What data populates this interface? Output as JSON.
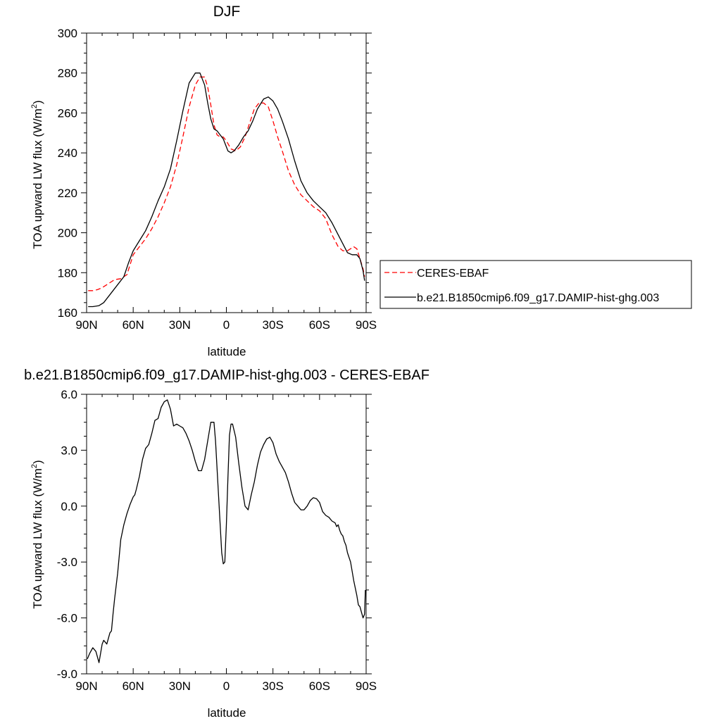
{
  "chart_data": [
    {
      "type": "line",
      "title": "DJF",
      "xlabel": "latitude",
      "ylabel": "TOA upward LW flux (W/m",
      "ylabel_sup": "2",
      "ylabel_close": ")",
      "xlim": [
        90,
        -90
      ],
      "ylim": [
        160,
        300
      ],
      "x_ticks": [
        90,
        60,
        30,
        0,
        -30,
        -60,
        -90
      ],
      "x_tick_labels": [
        "90N",
        "60N",
        "30N",
        "0",
        "30S",
        "60S",
        "90S"
      ],
      "y_ticks": [
        160,
        180,
        200,
        220,
        240,
        260,
        280,
        300
      ],
      "y_tick_labels": [
        "160",
        "180",
        "200",
        "220",
        "240",
        "260",
        "280",
        "300"
      ],
      "legend": "right",
      "series": [
        {
          "name": "CERES-EBAF",
          "color": "#ff0000",
          "dash": "dashed",
          "x": [
            89,
            86,
            83,
            80,
            76,
            72,
            68,
            64,
            60,
            56,
            52,
            48,
            44,
            40,
            36,
            32,
            28,
            24,
            20,
            17,
            14,
            12,
            10,
            8,
            6,
            4,
            2,
            0,
            -3,
            -6,
            -9,
            -12,
            -15,
            -18,
            -21,
            -24,
            -27,
            -30,
            -33,
            -36,
            -40,
            -44,
            -48,
            -52,
            -56,
            -60,
            -64,
            -68,
            -72,
            -75,
            -78,
            -80,
            -82,
            -84,
            -86,
            -88,
            -89
          ],
          "y": [
            171,
            171,
            171.5,
            172.5,
            174.5,
            176.5,
            177,
            179,
            189,
            193,
            197,
            202,
            208,
            215,
            223,
            234,
            248,
            263,
            274,
            278,
            278,
            273,
            264,
            254,
            249,
            248,
            248,
            246,
            242,
            241,
            243,
            248,
            255,
            262,
            265,
            265,
            263,
            256,
            248,
            241,
            231,
            224,
            219,
            216,
            213,
            211,
            207,
            199,
            193,
            191,
            191,
            192,
            193,
            192,
            187,
            182,
            178
          ]
        },
        {
          "name": "b.e21.B1850cmip6.f09_g17.DAMIP-hist-ghg.003",
          "color": "#000000",
          "dash": "solid",
          "x": [
            89,
            86,
            82,
            79,
            76,
            73,
            70,
            66,
            63,
            60,
            56,
            52,
            48,
            44,
            40,
            36,
            32,
            28,
            24,
            20,
            17,
            14,
            12,
            10,
            8,
            6,
            4,
            2,
            0,
            -1,
            -3,
            -5,
            -8,
            -11,
            -14,
            -17,
            -20,
            -24,
            -27,
            -30,
            -33,
            -36,
            -40,
            -44,
            -48,
            -52,
            -56,
            -60,
            -64,
            -68,
            -72,
            -76,
            -78,
            -81,
            -84,
            -86,
            -88,
            -89
          ],
          "y": [
            163,
            163,
            163.5,
            165,
            168,
            171,
            174,
            178,
            185,
            191,
            196,
            201,
            208,
            216,
            223,
            232,
            246,
            261,
            275,
            280,
            280,
            274,
            265,
            257,
            252,
            251,
            249,
            247,
            243,
            241,
            240,
            241,
            244,
            248,
            251,
            256,
            262,
            267,
            268,
            266,
            262,
            256,
            247,
            236,
            226,
            220,
            216,
            213,
            210,
            205,
            199,
            193,
            190,
            189,
            189,
            187,
            181,
            176
          ]
        }
      ]
    },
    {
      "type": "line",
      "title": "b.e21.B1850cmip6.f09_g17.DAMIP-hist-ghg.003 - CERES-EBAF",
      "xlabel": "latitude",
      "ylabel": "TOA upward LW flux (W/m",
      "ylabel_sup": "2",
      "ylabel_close": ")",
      "xlim": [
        90,
        -90
      ],
      "ylim": [
        -9,
        6
      ],
      "x_ticks": [
        90,
        60,
        30,
        0,
        -30,
        -60,
        -90
      ],
      "x_tick_labels": [
        "90N",
        "60N",
        "30N",
        "0",
        "30S",
        "60S",
        "90S"
      ],
      "y_ticks": [
        -9,
        -6,
        -3,
        0,
        3,
        6
      ],
      "y_tick_labels": [
        "-9.0",
        "-6.0",
        "-3.0",
        "0.0",
        "3.0",
        "6.0"
      ],
      "series": [
        {
          "color": "#000000",
          "dash": "solid",
          "x": [
            89.5,
            88,
            86,
            84,
            82,
            80,
            79,
            77,
            75,
            74,
            73,
            72,
            71,
            70,
            69,
            68,
            66,
            64,
            62,
            60,
            59,
            58,
            56,
            54,
            52,
            50,
            48,
            46,
            44,
            42,
            40,
            38,
            36,
            34,
            32,
            30,
            28,
            26,
            25,
            24,
            22,
            20,
            18,
            16,
            14,
            12,
            10,
            8,
            7,
            6,
            5,
            4,
            3,
            2,
            1,
            0,
            -1,
            -2,
            -3,
            -4,
            -6,
            -8,
            -10,
            -12,
            -14,
            -16,
            -18,
            -20,
            -22,
            -24,
            -26,
            -28,
            -30,
            -32,
            -34,
            -36,
            -38,
            -40,
            -42,
            -44,
            -46,
            -48,
            -50,
            -52,
            -54,
            -56,
            -58,
            -60,
            -62,
            -64,
            -66,
            -68,
            -70,
            -71,
            -72,
            -73,
            -74,
            -75,
            -76,
            -77,
            -78,
            -80,
            -82,
            -84,
            -85,
            -86,
            -87,
            -88,
            -89,
            -89.5
          ],
          "y": [
            -8.2,
            -7.9,
            -7.6,
            -7.8,
            -8.4,
            -7.4,
            -7.2,
            -7.4,
            -6.8,
            -6.7,
            -5.8,
            -5.0,
            -4.3,
            -3.6,
            -2.7,
            -1.8,
            -1.0,
            -0.4,
            0.1,
            0.5,
            0.6,
            0.9,
            1.6,
            2.5,
            3.1,
            3.3,
            3.9,
            4.6,
            4.7,
            5.3,
            5.6,
            5.7,
            5.2,
            4.3,
            4.4,
            4.3,
            4.2,
            3.9,
            3.7,
            3.5,
            3.0,
            2.4,
            1.9,
            1.9,
            2.5,
            3.5,
            4.5,
            4.5,
            3.5,
            2.0,
            0.5,
            -1.0,
            -2.5,
            -3.1,
            -3.0,
            -1.0,
            1.5,
            3.8,
            4.4,
            4.4,
            3.7,
            2.3,
            1.0,
            0.0,
            -0.2,
            0.6,
            1.3,
            2.2,
            2.9,
            3.3,
            3.6,
            3.7,
            3.4,
            2.8,
            2.4,
            2.1,
            1.8,
            1.3,
            0.7,
            0.2,
            0.0,
            -0.2,
            -0.2,
            0.0,
            0.3,
            0.45,
            0.4,
            0.2,
            -0.3,
            -0.5,
            -0.6,
            -0.8,
            -0.9,
            -1.1,
            -1.0,
            -1.3,
            -1.5,
            -1.6,
            -1.9,
            -2.1,
            -2.5,
            -3.0,
            -4.0,
            -4.8,
            -5.3,
            -5.4,
            -5.7,
            -6.0,
            -5.8,
            -4.5
          ]
        }
      ]
    }
  ]
}
